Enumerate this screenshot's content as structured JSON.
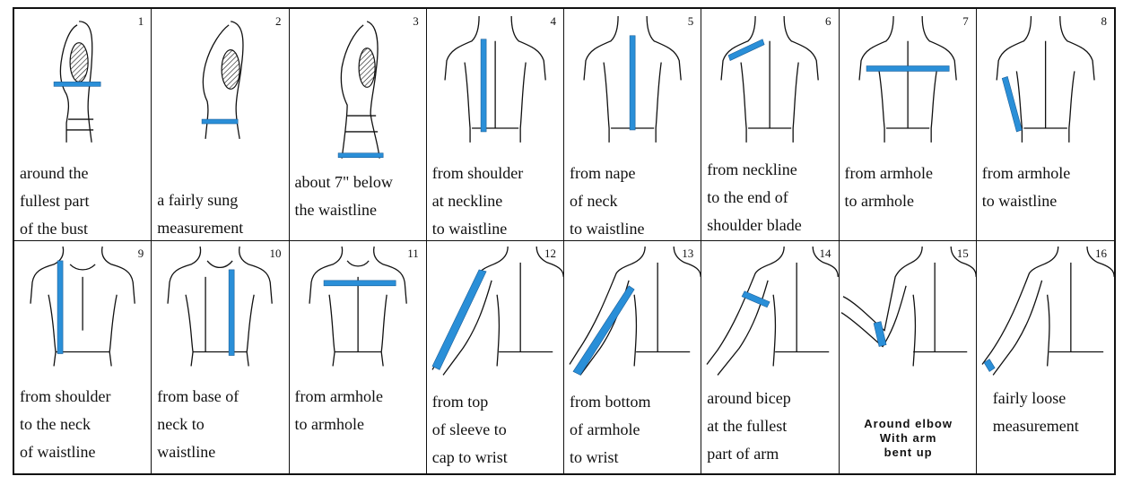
{
  "accent_color": "#2a8fd8",
  "cells": [
    {
      "number": "1",
      "caption": [
        "around the",
        "fullest part",
        "of the bust"
      ],
      "figure": "side-view-torso",
      "tape": "bust"
    },
    {
      "number": "2",
      "caption": [
        "a fairly sung",
        "measurement"
      ],
      "figure": "side-view-torso",
      "tape": "waist"
    },
    {
      "number": "3",
      "caption": [
        "about  7\"  below",
        "the waistline"
      ],
      "figure": "side-view-torso",
      "tape": "hip"
    },
    {
      "number": "4",
      "caption": [
        "from shoulder",
        "at neckline",
        "to waistline"
      ],
      "figure": "back-view-torso",
      "tape": "shoulder-to-waist"
    },
    {
      "number": "5",
      "caption": [
        "from nape",
        "of neck",
        "to waistline"
      ],
      "figure": "back-view-torso",
      "tape": "nape-to-waist"
    },
    {
      "number": "6",
      "caption": [
        "from neckline",
        "to the end of",
        "shoulder blade"
      ],
      "figure": "back-view-torso",
      "tape": "shoulder-length"
    },
    {
      "number": "7",
      "caption": [
        "from armhole",
        "to armhole"
      ],
      "figure": "back-view-torso",
      "tape": "back-width"
    },
    {
      "number": "8",
      "caption": [
        "from armhole",
        "to waistline"
      ],
      "figure": "back-view-torso",
      "tape": "side-seam"
    },
    {
      "number": "9",
      "caption": [
        "from shoulder",
        "to the neck",
        "of waistline"
      ],
      "figure": "front-view-torso",
      "tape": "front-shoulder-to-waist"
    },
    {
      "number": "10",
      "caption": [
        "from base of",
        "neck to",
        "waistline"
      ],
      "figure": "front-view-torso",
      "tape": "front-neck-to-waist"
    },
    {
      "number": "11",
      "caption": [
        "from armhole",
        "to armhole"
      ],
      "figure": "front-view-torso",
      "tape": "front-width"
    },
    {
      "number": "12",
      "caption": [
        "from top",
        "of sleeve to",
        "cap to wrist"
      ],
      "figure": "back-view-arm",
      "tape": "sleeve-length"
    },
    {
      "number": "13",
      "caption": [
        "from bottom",
        "of armhole",
        "to wrist"
      ],
      "figure": "back-view-arm",
      "tape": "underarm-length"
    },
    {
      "number": "14",
      "caption": [
        "around bicep",
        "at the fullest",
        "part of arm"
      ],
      "figure": "back-view-arm",
      "tape": "bicep"
    },
    {
      "number": "15",
      "caption": [
        "Around elbow",
        "With arm",
        "bent up"
      ],
      "figure": "back-view-bent-arm",
      "tape": "elbow"
    },
    {
      "number": "16",
      "caption": [
        "fairly loose",
        "measurement"
      ],
      "figure": "back-view-arm",
      "tape": "wrist"
    }
  ]
}
